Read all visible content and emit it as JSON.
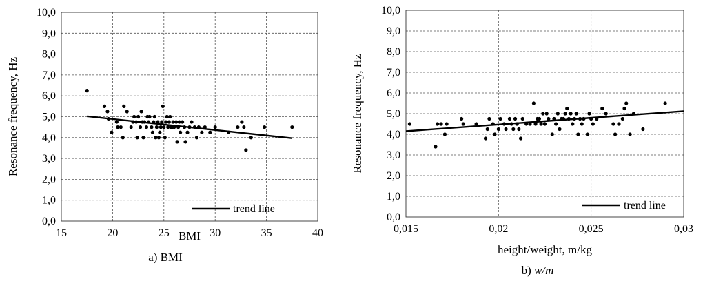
{
  "chart_data": [
    {
      "type": "scatter",
      "panel_caption": "a) BMI",
      "xlabel": "BMI",
      "ylabel": "Resonance frequency, Hz",
      "xlim": [
        15,
        40
      ],
      "ylim": [
        0,
        10
      ],
      "xticks": [
        "15",
        "20",
        "25",
        "30",
        "35",
        "40"
      ],
      "yticks": [
        "0,0",
        "1,0",
        "2,0",
        "3,0",
        "4,0",
        "5,0",
        "6,0",
        "7,0",
        "8,0",
        "9,0",
        "10,0"
      ],
      "grid": true,
      "legend": {
        "position": "bottom-right",
        "label": "trend line"
      },
      "trend_line": {
        "x": [
          17.5,
          37.5
        ],
        "y": [
          5.02,
          3.97
        ]
      },
      "points": [
        [
          17.5,
          6.25
        ],
        [
          19.2,
          5.5
        ],
        [
          19.5,
          5.25
        ],
        [
          19.6,
          4.9
        ],
        [
          19.9,
          4.25
        ],
        [
          20.4,
          4.75
        ],
        [
          20.5,
          4.5
        ],
        [
          20.8,
          4.5
        ],
        [
          21.0,
          4.0
        ],
        [
          21.1,
          5.5
        ],
        [
          21.4,
          5.25
        ],
        [
          21.8,
          4.5
        ],
        [
          22.0,
          4.75
        ],
        [
          22.1,
          5.0
        ],
        [
          22.3,
          4.75
        ],
        [
          22.4,
          4.0
        ],
        [
          22.5,
          5.0
        ],
        [
          22.7,
          4.5
        ],
        [
          22.8,
          5.25
        ],
        [
          22.9,
          4.75
        ],
        [
          23.0,
          4.0
        ],
        [
          23.1,
          4.75
        ],
        [
          23.3,
          4.5
        ],
        [
          23.4,
          5.0
        ],
        [
          23.5,
          4.75
        ],
        [
          23.6,
          5.0
        ],
        [
          23.8,
          4.5
        ],
        [
          23.9,
          4.25
        ],
        [
          24.0,
          4.75
        ],
        [
          24.1,
          5.0
        ],
        [
          24.2,
          4.0
        ],
        [
          24.3,
          4.5
        ],
        [
          24.4,
          4.75
        ],
        [
          24.5,
          4.0
        ],
        [
          24.6,
          4.25
        ],
        [
          24.7,
          4.5
        ],
        [
          24.8,
          4.75
        ],
        [
          24.9,
          5.5
        ],
        [
          25.0,
          4.5
        ],
        [
          25.1,
          4.0
        ],
        [
          25.2,
          4.75
        ],
        [
          25.3,
          5.0
        ],
        [
          25.4,
          4.5
        ],
        [
          25.5,
          4.75
        ],
        [
          25.6,
          5.0
        ],
        [
          25.7,
          4.5
        ],
        [
          25.8,
          4.5
        ],
        [
          25.9,
          4.75
        ],
        [
          26.0,
          4.5
        ],
        [
          26.2,
          4.75
        ],
        [
          26.3,
          3.8
        ],
        [
          26.4,
          4.5
        ],
        [
          26.5,
          4.75
        ],
        [
          26.6,
          4.25
        ],
        [
          26.8,
          4.75
        ],
        [
          27.0,
          4.5
        ],
        [
          27.1,
          3.8
        ],
        [
          27.3,
          4.25
        ],
        [
          27.5,
          4.5
        ],
        [
          27.7,
          4.75
        ],
        [
          28.0,
          4.5
        ],
        [
          28.2,
          4.0
        ],
        [
          28.4,
          4.5
        ],
        [
          28.7,
          4.25
        ],
        [
          29.0,
          4.5
        ],
        [
          29.5,
          4.25
        ],
        [
          30.0,
          4.5
        ],
        [
          31.3,
          4.25
        ],
        [
          32.2,
          4.5
        ],
        [
          32.6,
          4.75
        ],
        [
          32.8,
          4.5
        ],
        [
          33.0,
          3.4
        ],
        [
          33.5,
          4.0
        ],
        [
          34.8,
          4.5
        ],
        [
          37.5,
          4.5
        ]
      ]
    },
    {
      "type": "scatter",
      "panel_caption_prefix": "b) ",
      "panel_caption_math": "w/m",
      "xlabel": "height/weight, m/kg",
      "ylabel": "Resonance frequency, Hz",
      "xlim": [
        0.015,
        0.03
      ],
      "ylim": [
        0,
        10
      ],
      "xticks": [
        "0,015",
        "0,02",
        "0,025",
        "0,03"
      ],
      "yticks": [
        "0,0",
        "1,0",
        "2,0",
        "3,0",
        "4,0",
        "5,0",
        "6,0",
        "7,0",
        "8,0",
        "9,0",
        "10,0"
      ],
      "grid": true,
      "legend": {
        "position": "bottom-right",
        "label": "trend line"
      },
      "trend_line": {
        "x": [
          0.015,
          0.03
        ],
        "y": [
          4.15,
          5.12
        ]
      },
      "points": [
        [
          0.0152,
          4.5
        ],
        [
          0.0166,
          3.4
        ],
        [
          0.0167,
          4.5
        ],
        [
          0.0169,
          4.5
        ],
        [
          0.0171,
          4.0
        ],
        [
          0.0172,
          4.5
        ],
        [
          0.018,
          4.75
        ],
        [
          0.0181,
          4.5
        ],
        [
          0.0188,
          4.5
        ],
        [
          0.0193,
          3.8
        ],
        [
          0.0194,
          4.25
        ],
        [
          0.0195,
          4.75
        ],
        [
          0.0197,
          4.5
        ],
        [
          0.0198,
          4.0
        ],
        [
          0.02,
          4.25
        ],
        [
          0.0201,
          4.75
        ],
        [
          0.0203,
          4.5
        ],
        [
          0.0204,
          4.25
        ],
        [
          0.0206,
          4.75
        ],
        [
          0.0207,
          4.5
        ],
        [
          0.0208,
          4.25
        ],
        [
          0.0209,
          4.75
        ],
        [
          0.021,
          4.5
        ],
        [
          0.0211,
          4.25
        ],
        [
          0.0212,
          3.8
        ],
        [
          0.0213,
          4.75
        ],
        [
          0.0215,
          4.5
        ],
        [
          0.0217,
          4.5
        ],
        [
          0.0219,
          5.5
        ],
        [
          0.022,
          4.5
        ],
        [
          0.0221,
          4.75
        ],
        [
          0.0222,
          4.75
        ],
        [
          0.0223,
          4.5
        ],
        [
          0.0224,
          5.0
        ],
        [
          0.0225,
          4.5
        ],
        [
          0.0226,
          5.0
        ],
        [
          0.0227,
          4.75
        ],
        [
          0.0229,
          4.0
        ],
        [
          0.023,
          4.75
        ],
        [
          0.0231,
          4.5
        ],
        [
          0.0232,
          5.0
        ],
        [
          0.0233,
          4.25
        ],
        [
          0.0234,
          4.75
        ],
        [
          0.0235,
          4.75
        ],
        [
          0.0236,
          5.0
        ],
        [
          0.0237,
          5.25
        ],
        [
          0.0238,
          4.75
        ],
        [
          0.0239,
          5.0
        ],
        [
          0.024,
          4.5
        ],
        [
          0.0241,
          4.75
        ],
        [
          0.0242,
          5.0
        ],
        [
          0.0243,
          4.0
        ],
        [
          0.0244,
          4.75
        ],
        [
          0.0245,
          4.5
        ],
        [
          0.0246,
          4.75
        ],
        [
          0.0248,
          4.0
        ],
        [
          0.0249,
          5.0
        ],
        [
          0.025,
          4.75
        ],
        [
          0.0251,
          4.5
        ],
        [
          0.0253,
          4.75
        ],
        [
          0.0256,
          5.25
        ],
        [
          0.0258,
          5.0
        ],
        [
          0.0262,
          4.5
        ],
        [
          0.0263,
          4.0
        ],
        [
          0.0265,
          4.5
        ],
        [
          0.0267,
          4.75
        ],
        [
          0.0268,
          5.25
        ],
        [
          0.0269,
          5.5
        ],
        [
          0.0271,
          4.0
        ],
        [
          0.0273,
          5.0
        ],
        [
          0.0278,
          4.25
        ],
        [
          0.029,
          5.5
        ]
      ]
    }
  ]
}
